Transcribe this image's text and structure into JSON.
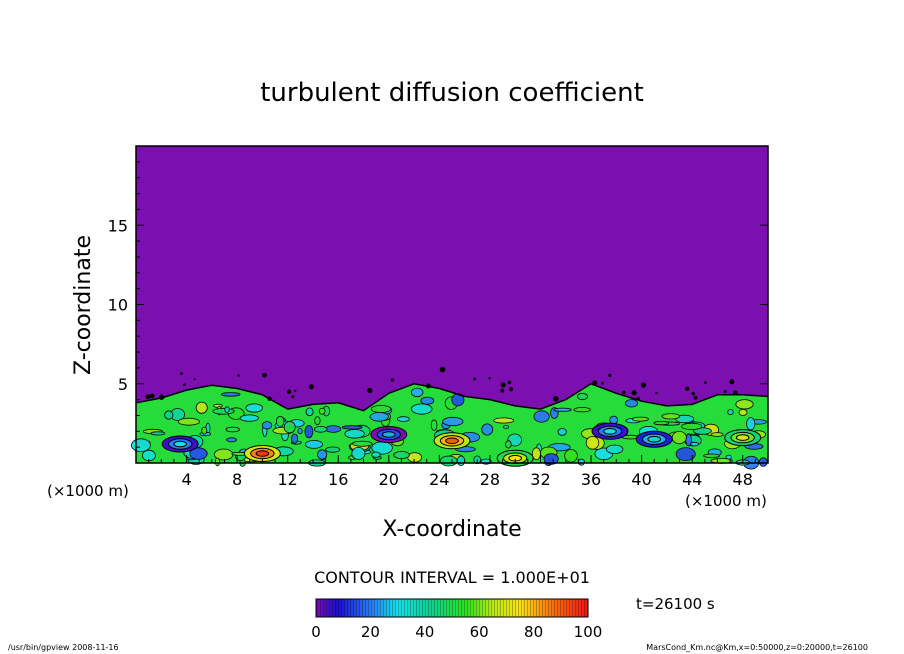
{
  "chart_data": {
    "type": "heatmap",
    "title": "turbulent diffusion coefficient",
    "xlabel": "X-coordinate",
    "ylabel": "Z-coordinate",
    "x_unit": "(×1000 m)",
    "y_unit": "(×1000 m)",
    "xlim": [
      0,
      50
    ],
    "ylim": [
      0,
      20
    ],
    "x_ticks": [
      "4",
      "8",
      "12",
      "16",
      "20",
      "24",
      "28",
      "32",
      "36",
      "40",
      "44",
      "48"
    ],
    "y_ticks": [
      "5",
      "10",
      "15"
    ],
    "contour_interval": "CONTOUR INTERVAL = 1.000E+01",
    "colorbar": {
      "min": 0,
      "max": 100,
      "ticks": [
        "0",
        "20",
        "40",
        "60",
        "80",
        "100"
      ]
    },
    "time_label": "t=26100 s",
    "background_value": 0,
    "mixed_layer_top": [
      [
        0,
        3.8
      ],
      [
        2,
        4.1
      ],
      [
        4,
        4.6
      ],
      [
        6,
        4.9
      ],
      [
        8,
        4.7
      ],
      [
        10,
        4.3
      ],
      [
        12,
        3.4
      ],
      [
        14,
        3.7
      ],
      [
        16,
        3.8
      ],
      [
        18,
        3.3
      ],
      [
        20,
        4.4
      ],
      [
        22,
        5.0
      ],
      [
        24,
        4.7
      ],
      [
        26,
        4.2
      ],
      [
        28,
        4.0
      ],
      [
        30,
        3.6
      ],
      [
        32,
        3.4
      ],
      [
        34,
        4.0
      ],
      [
        36,
        5.0
      ],
      [
        38,
        4.4
      ],
      [
        40,
        3.9
      ],
      [
        42,
        3.6
      ],
      [
        44,
        3.7
      ],
      [
        46,
        4.3
      ],
      [
        48,
        4.3
      ],
      [
        50,
        4.2
      ]
    ],
    "hotspots": [
      {
        "x": 10,
        "z": 0.6,
        "value": 95
      },
      {
        "x": 25,
        "z": 1.4,
        "value": 90
      },
      {
        "x": 30,
        "z": 0.3,
        "value": 75
      },
      {
        "x": 3.5,
        "z": 1.2,
        "value": 30
      },
      {
        "x": 20,
        "z": 1.8,
        "value": 25
      },
      {
        "x": 37.5,
        "z": 2.0,
        "value": 30
      },
      {
        "x": 41,
        "z": 1.5,
        "value": 35
      },
      {
        "x": 48,
        "z": 1.6,
        "value": 70
      }
    ]
  },
  "footer": {
    "left": "/usr/bin/gpview   2008-11-16",
    "right": "MarsCond_Km.nc@Km,x=0:50000,z=0:20000,t=26100"
  }
}
